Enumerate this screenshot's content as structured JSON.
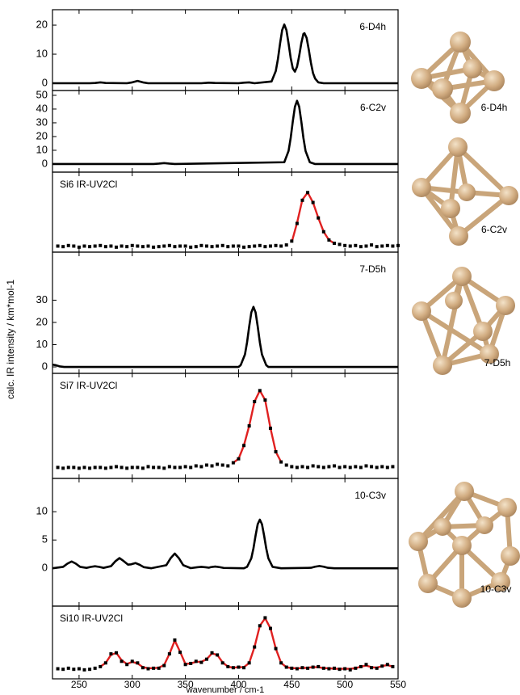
{
  "axis_labels": {
    "x": "wavenumber / cm-1",
    "y": "calc. IR intensity / km*mol-1"
  },
  "chart_data": [
    {
      "type": "line",
      "title": "6-D4h",
      "color": "#000000",
      "xlim": [
        225,
        550
      ],
      "xticks": [
        250,
        300,
        350,
        400,
        450,
        500,
        550
      ],
      "ylim": [
        -2.5,
        25.3
      ],
      "yticks": [
        0,
        10,
        20
      ],
      "x": [
        225,
        260,
        265,
        270,
        275,
        295,
        300,
        305,
        310,
        315,
        365,
        372,
        378,
        400,
        405,
        410,
        415,
        431,
        435,
        437,
        439,
        441,
        443,
        445,
        447,
        449,
        451,
        453,
        455,
        457,
        459,
        461,
        462,
        464,
        466,
        468,
        470,
        472,
        475,
        480,
        550
      ],
      "values": [
        0,
        0,
        0.1,
        0.3,
        0.1,
        0,
        0.3,
        0.8,
        0.3,
        0,
        0,
        0.2,
        0.1,
        0,
        0.2,
        0.3,
        0,
        0.6,
        4.2,
        8.3,
        13.6,
        18.3,
        20.2,
        18.3,
        13.7,
        8.7,
        5.1,
        4.0,
        5.7,
        9.4,
        13.8,
        17.0,
        17.2,
        15.6,
        11.6,
        7.1,
        3.5,
        1.6,
        0.3,
        0,
        0
      ]
    },
    {
      "type": "line",
      "title": "6-C2v",
      "color": "#000000",
      "xlim": [
        225,
        550
      ],
      "xticks": [
        250,
        300,
        350,
        400,
        450,
        500,
        550
      ],
      "ylim": [
        -5.9,
        53.5
      ],
      "yticks": [
        0,
        10,
        20,
        30,
        40,
        50
      ],
      "x": [
        225,
        320,
        325,
        330,
        335,
        340,
        443,
        447,
        449,
        451,
        453,
        455,
        457,
        459,
        461,
        463,
        467,
        472,
        550
      ],
      "values": [
        0,
        0,
        0.3,
        0.7,
        0.3,
        0,
        1.3,
        9.5,
        18.9,
        31.0,
        41.7,
        46,
        41.7,
        31.0,
        18.9,
        9.5,
        1.3,
        0,
        0
      ]
    },
    {
      "type": "scatter",
      "title": "Si6 IR-UV2Cl",
      "color": "#000000",
      "fit_color": "#e02020",
      "xlim": [
        225,
        550
      ],
      "xticks": [
        250,
        300,
        350,
        400,
        450,
        500,
        550
      ],
      "ylim": [
        -0.1,
        1.35
      ],
      "x": [
        230,
        235,
        240,
        245,
        250,
        255,
        260,
        265,
        270,
        275,
        280,
        285,
        290,
        295,
        300,
        305,
        310,
        315,
        320,
        325,
        330,
        335,
        340,
        345,
        350,
        355,
        360,
        365,
        370,
        375,
        380,
        385,
        390,
        395,
        400,
        405,
        410,
        415,
        420,
        425,
        430,
        435,
        440,
        445,
        450,
        455,
        460,
        465,
        470,
        475,
        480,
        485,
        490,
        495,
        500,
        505,
        510,
        515,
        520,
        525,
        530,
        535,
        540,
        545,
        550
      ],
      "values": [
        0.01,
        0.0,
        0.02,
        0.01,
        -0.01,
        0.01,
        0.0,
        0.01,
        0.02,
        0.0,
        0.01,
        -0.01,
        0.01,
        0.0,
        0.02,
        0.01,
        0.0,
        0.01,
        -0.01,
        0.0,
        0.01,
        0.02,
        0.0,
        0.01,
        0.01,
        -0.01,
        0.0,
        0.02,
        0.01,
        0.0,
        0.01,
        0.02,
        0.0,
        0.01,
        0.01,
        -0.01,
        0.0,
        0.01,
        0.02,
        0.0,
        0.01,
        0.02,
        0.01,
        0.03,
        0.1,
        0.42,
        0.84,
        0.98,
        0.8,
        0.52,
        0.27,
        0.12,
        0.06,
        0.04,
        0.02,
        0.01,
        0.02,
        0.0,
        0.01,
        0.03,
        0.0,
        0.01,
        0.02,
        0.01,
        0.02
      ],
      "fit_x": [
        450,
        455,
        460,
        465,
        470,
        475,
        480,
        485,
        490
      ],
      "fit_values": [
        0.08,
        0.43,
        0.85,
        0.98,
        0.8,
        0.52,
        0.27,
        0.12,
        0.06
      ]
    },
    {
      "type": "line",
      "title": "7-D5h",
      "color": "#000000",
      "xlim": [
        225,
        550
      ],
      "xticks": [
        250,
        300,
        350,
        400,
        450,
        500,
        550
      ],
      "ylim": [
        -2.9,
        51.6
      ],
      "yticks": [
        0,
        10,
        20,
        30
      ],
      "x": [
        225,
        228,
        232,
        236,
        400,
        402,
        406,
        408,
        410,
        412,
        414,
        416,
        418,
        420,
        422,
        426,
        428,
        550
      ],
      "values": [
        1.0,
        0.8,
        0.2,
        0,
        0,
        0.8,
        5.6,
        11.1,
        18.2,
        24.5,
        27,
        24.5,
        18.2,
        11.1,
        5.6,
        0.8,
        0,
        0
      ]
    },
    {
      "type": "scatter",
      "title": "Si7 IR-UV2Cl",
      "color": "#000000",
      "fit_color": "#e02020",
      "xlim": [
        225,
        550
      ],
      "xticks": [
        250,
        300,
        350,
        400,
        450,
        500,
        550
      ],
      "ylim": [
        -0.12,
        1.22
      ],
      "x": [
        230,
        235,
        240,
        245,
        250,
        255,
        260,
        265,
        270,
        275,
        280,
        285,
        290,
        295,
        300,
        305,
        310,
        315,
        320,
        325,
        330,
        335,
        340,
        345,
        350,
        355,
        360,
        365,
        370,
        375,
        380,
        385,
        390,
        395,
        400,
        405,
        410,
        415,
        420,
        425,
        430,
        435,
        440,
        445,
        450,
        455,
        460,
        465,
        470,
        475,
        480,
        485,
        490,
        495,
        500,
        505,
        510,
        515,
        520,
        525,
        530,
        535,
        540,
        545
      ],
      "values": [
        0.02,
        0.01,
        0.02,
        0.02,
        0.01,
        0.02,
        0.01,
        0.02,
        0.02,
        0.01,
        0.02,
        0.03,
        0.02,
        0.01,
        0.02,
        0.02,
        0.01,
        0.03,
        0.02,
        0.02,
        0.01,
        0.03,
        0.02,
        0.02,
        0.03,
        0.02,
        0.04,
        0.03,
        0.05,
        0.04,
        0.06,
        0.05,
        0.04,
        0.08,
        0.13,
        0.3,
        0.55,
        0.86,
        1.0,
        0.88,
        0.52,
        0.22,
        0.09,
        0.05,
        0.03,
        0.02,
        0.03,
        0.02,
        0.04,
        0.03,
        0.02,
        0.03,
        0.04,
        0.02,
        0.03,
        0.02,
        0.03,
        0.02,
        0.04,
        0.03,
        0.02,
        0.03,
        0.02,
        0.03
      ],
      "fit_x": [
        395,
        400,
        405,
        410,
        415,
        420,
        425,
        430,
        435,
        440
      ],
      "fit_values": [
        0.08,
        0.13,
        0.3,
        0.55,
        0.86,
        1.0,
        0.88,
        0.52,
        0.22,
        0.09
      ]
    },
    {
      "type": "line",
      "title": "10-C3v",
      "color": "#000000",
      "xlim": [
        225,
        550
      ],
      "xticks": [
        250,
        300,
        350,
        400,
        450,
        500,
        550
      ],
      "ylim": [
        -6.7,
        15.9
      ],
      "yticks": [
        0,
        5,
        10
      ],
      "x": [
        225,
        235,
        239,
        243,
        247,
        251,
        257,
        261,
        265,
        269,
        273,
        280,
        284,
        288,
        292,
        296,
        299,
        303,
        307,
        311,
        318,
        332,
        336,
        340,
        344,
        348,
        355,
        361,
        365,
        369,
        372,
        374,
        378,
        382,
        386,
        405,
        408,
        412,
        414,
        416,
        418,
        420,
        422,
        424,
        426,
        428,
        432,
        440,
        468,
        472,
        476,
        480,
        484,
        490,
        550
      ],
      "values": [
        0,
        0.25,
        0.81,
        1.2,
        0.81,
        0.25,
        0.07,
        0.24,
        0.35,
        0.24,
        0.07,
        0.37,
        1.21,
        1.8,
        1.26,
        0.64,
        0.7,
        0.92,
        0.61,
        0.19,
        0,
        0.54,
        1.75,
        2.6,
        1.75,
        0.54,
        0.02,
        0.17,
        0.25,
        0.17,
        0.1,
        0.2,
        0.3,
        0.2,
        0.06,
        0,
        0.25,
        1.77,
        3.53,
        5.8,
        7.8,
        8.6,
        7.8,
        5.8,
        3.53,
        1.77,
        0.25,
        0,
        0.08,
        0.27,
        0.4,
        0.27,
        0.08,
        0,
        0
      ]
    },
    {
      "type": "scatter",
      "title": "Si10 IR-UV2Cl",
      "color": "#000000",
      "fit_color": "#e02020",
      "xlim": [
        225,
        550
      ],
      "xticks": [
        250,
        300,
        350,
        400,
        450,
        500,
        550
      ],
      "ylim": [
        -0.15,
        1.22
      ],
      "x": [
        230,
        235,
        240,
        245,
        250,
        255,
        260,
        265,
        270,
        275,
        280,
        285,
        290,
        295,
        300,
        305,
        310,
        315,
        320,
        325,
        330,
        335,
        340,
        345,
        350,
        355,
        360,
        365,
        370,
        375,
        380,
        385,
        390,
        395,
        400,
        405,
        410,
        415,
        420,
        425,
        430,
        435,
        440,
        445,
        450,
        455,
        460,
        465,
        470,
        475,
        480,
        485,
        490,
        495,
        500,
        505,
        510,
        515,
        520,
        525,
        530,
        535,
        540,
        545
      ],
      "values": [
        0.04,
        0.03,
        0.05,
        0.03,
        0.04,
        0.02,
        0.03,
        0.05,
        0.08,
        0.15,
        0.32,
        0.34,
        0.18,
        0.12,
        0.18,
        0.15,
        0.06,
        0.04,
        0.05,
        0.05,
        0.1,
        0.32,
        0.58,
        0.35,
        0.12,
        0.14,
        0.18,
        0.16,
        0.22,
        0.34,
        0.3,
        0.15,
        0.08,
        0.06,
        0.07,
        0.06,
        0.15,
        0.45,
        0.85,
        1.0,
        0.8,
        0.42,
        0.15,
        0.07,
        0.05,
        0.04,
        0.06,
        0.05,
        0.07,
        0.08,
        0.05,
        0.04,
        0.05,
        0.03,
        0.04,
        0.02,
        0.05,
        0.08,
        0.12,
        0.06,
        0.05,
        0.09,
        0.12,
        0.08
      ],
      "fit_x": [
        270,
        275,
        280,
        285,
        290,
        295,
        300,
        305,
        310,
        315,
        320,
        325,
        330,
        335,
        340,
        345,
        350,
        355,
        360,
        365,
        370,
        375,
        380,
        385,
        390,
        395,
        400,
        405,
        410,
        415,
        420,
        425,
        430,
        435,
        440,
        445,
        450,
        455,
        460,
        465,
        470,
        475,
        480,
        485,
        490,
        495,
        500,
        505,
        510,
        515,
        520,
        525,
        530,
        535,
        540,
        545
      ],
      "fit_values": [
        0.08,
        0.15,
        0.3,
        0.34,
        0.2,
        0.13,
        0.17,
        0.14,
        0.07,
        0.05,
        0.05,
        0.06,
        0.11,
        0.32,
        0.57,
        0.36,
        0.13,
        0.14,
        0.17,
        0.17,
        0.22,
        0.33,
        0.3,
        0.16,
        0.08,
        0.06,
        0.07,
        0.07,
        0.15,
        0.45,
        0.85,
        0.99,
        0.8,
        0.42,
        0.15,
        0.07,
        0.05,
        0.05,
        0.05,
        0.06,
        0.07,
        0.07,
        0.05,
        0.05,
        0.04,
        0.04,
        0.04,
        0.04,
        0.05,
        0.08,
        0.1,
        0.07,
        0.06,
        0.09,
        0.11,
        0.08
      ]
    }
  ]
}
